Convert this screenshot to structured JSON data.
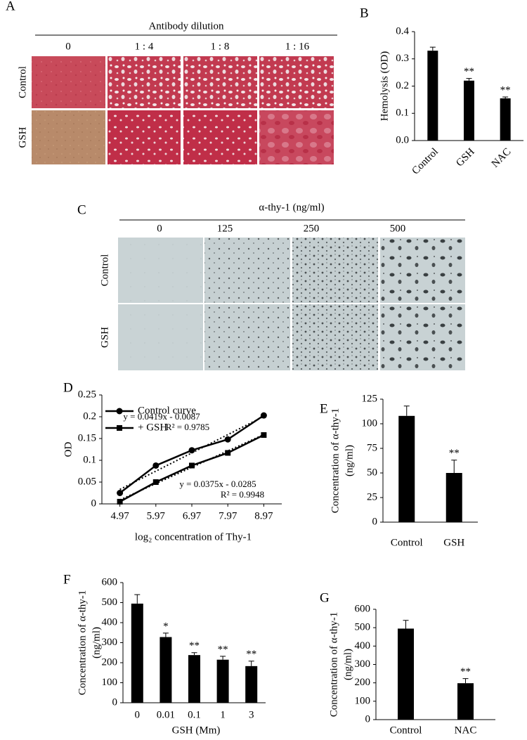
{
  "panel_labels": [
    "A",
    "B",
    "C",
    "D",
    "E",
    "F",
    "G"
  ],
  "image_panels": [
    {
      "header": "Antibody dilution",
      "columns": [
        "0",
        "1 : 4",
        "1 : 8",
        "1 : 16"
      ],
      "rows": [
        "Control",
        "GSH"
      ]
    },
    {
      "header": "α-thy-1 (ng/ml)",
      "columns": [
        "0",
        "125",
        "250",
        "500"
      ],
      "rows": [
        "Control",
        "GSH"
      ]
    }
  ],
  "chart_data": [
    {
      "type": "bar",
      "categories": [
        "Control",
        "GSH",
        "NAC"
      ],
      "values": [
        0.33,
        0.22,
        0.155
      ],
      "errors": [
        0.013,
        0.008,
        0.005
      ],
      "annotations": [
        null,
        "**",
        "**"
      ],
      "ylabel": [
        "Hemolysis (OD)"
      ],
      "ylim": [
        0,
        0.4
      ],
      "yticks": [
        {
          "value": 0,
          "label": "0.0"
        },
        0.1,
        0.2,
        0.3,
        0.4
      ],
      "color": "#000000"
    },
    {
      "type": "line",
      "x": [
        4.97,
        5.97,
        6.97,
        7.97,
        8.97
      ],
      "xlim": [
        4.47,
        9.47
      ],
      "xticks": [
        4.97,
        5.97,
        6.97,
        7.97,
        8.97
      ],
      "ylim": [
        0,
        0.25
      ],
      "yticks": [
        0,
        0.05,
        0.1,
        0.15,
        0.2,
        0.25
      ],
      "xlabel": "log₂ concentration of Thy-1",
      "ylabel": [
        "OD"
      ],
      "series": [
        {
          "name": "Control curve",
          "color": "#000000",
          "marker": "circle",
          "values": [
            0.025,
            0.088,
            0.123,
            0.148,
            0.203
          ]
        },
        {
          "name": "+ GSH",
          "color": "#000000",
          "marker": "square",
          "values": [
            0.005,
            0.05,
            0.088,
            0.117,
            0.158
          ]
        }
      ],
      "trendlines": [
        {
          "equation": "y = 0.0419x - 0.0087",
          "r_squared": "R² = 0.9785",
          "slope": 0.0419,
          "intercept": -0.0087
        },
        {
          "equation": "y = 0.0375x - 0.0285",
          "r_squared": "R² = 0.9948",
          "slope": 0.0375,
          "intercept": -0.0285
        }
      ]
    },
    {
      "type": "bar",
      "categories": [
        "Control",
        "GSH"
      ],
      "values": [
        108,
        50
      ],
      "errors": [
        10,
        13
      ],
      "annotations": [
        null,
        "**"
      ],
      "ylabel": [
        "Concentration of α-thy-1",
        "(ng/ml)"
      ],
      "ylim": [
        0,
        125
      ],
      "yticks": [
        0,
        25,
        50,
        75,
        100,
        125
      ],
      "color": "#000000"
    },
    {
      "type": "bar",
      "categories": [
        "0",
        "0.01",
        "0.1",
        "1",
        "3"
      ],
      "values": [
        495,
        328,
        238,
        215,
        183
      ],
      "errors": [
        45,
        20,
        12,
        17,
        25
      ],
      "annotations": [
        null,
        "*",
        "**",
        "**",
        "**"
      ],
      "xlabel": "GSH (Mm)",
      "ylabel": [
        "Concentration of α-thy-1",
        "(ng/ml)"
      ],
      "ylim": [
        0,
        600
      ],
      "yticks": [
        0,
        100,
        200,
        300,
        400,
        500,
        600
      ],
      "color": "#000000"
    },
    {
      "type": "bar",
      "categories": [
        "Control",
        "NAC"
      ],
      "values": [
        495,
        198
      ],
      "errors": [
        45,
        25
      ],
      "annotations": [
        null,
        "**"
      ],
      "ylabel": [
        "Concentration of α-thy-1",
        "(ng/ml)"
      ],
      "ylim": [
        0,
        600
      ],
      "yticks": [
        0,
        100,
        200,
        300,
        400,
        500,
        600
      ],
      "color": "#000000"
    }
  ]
}
